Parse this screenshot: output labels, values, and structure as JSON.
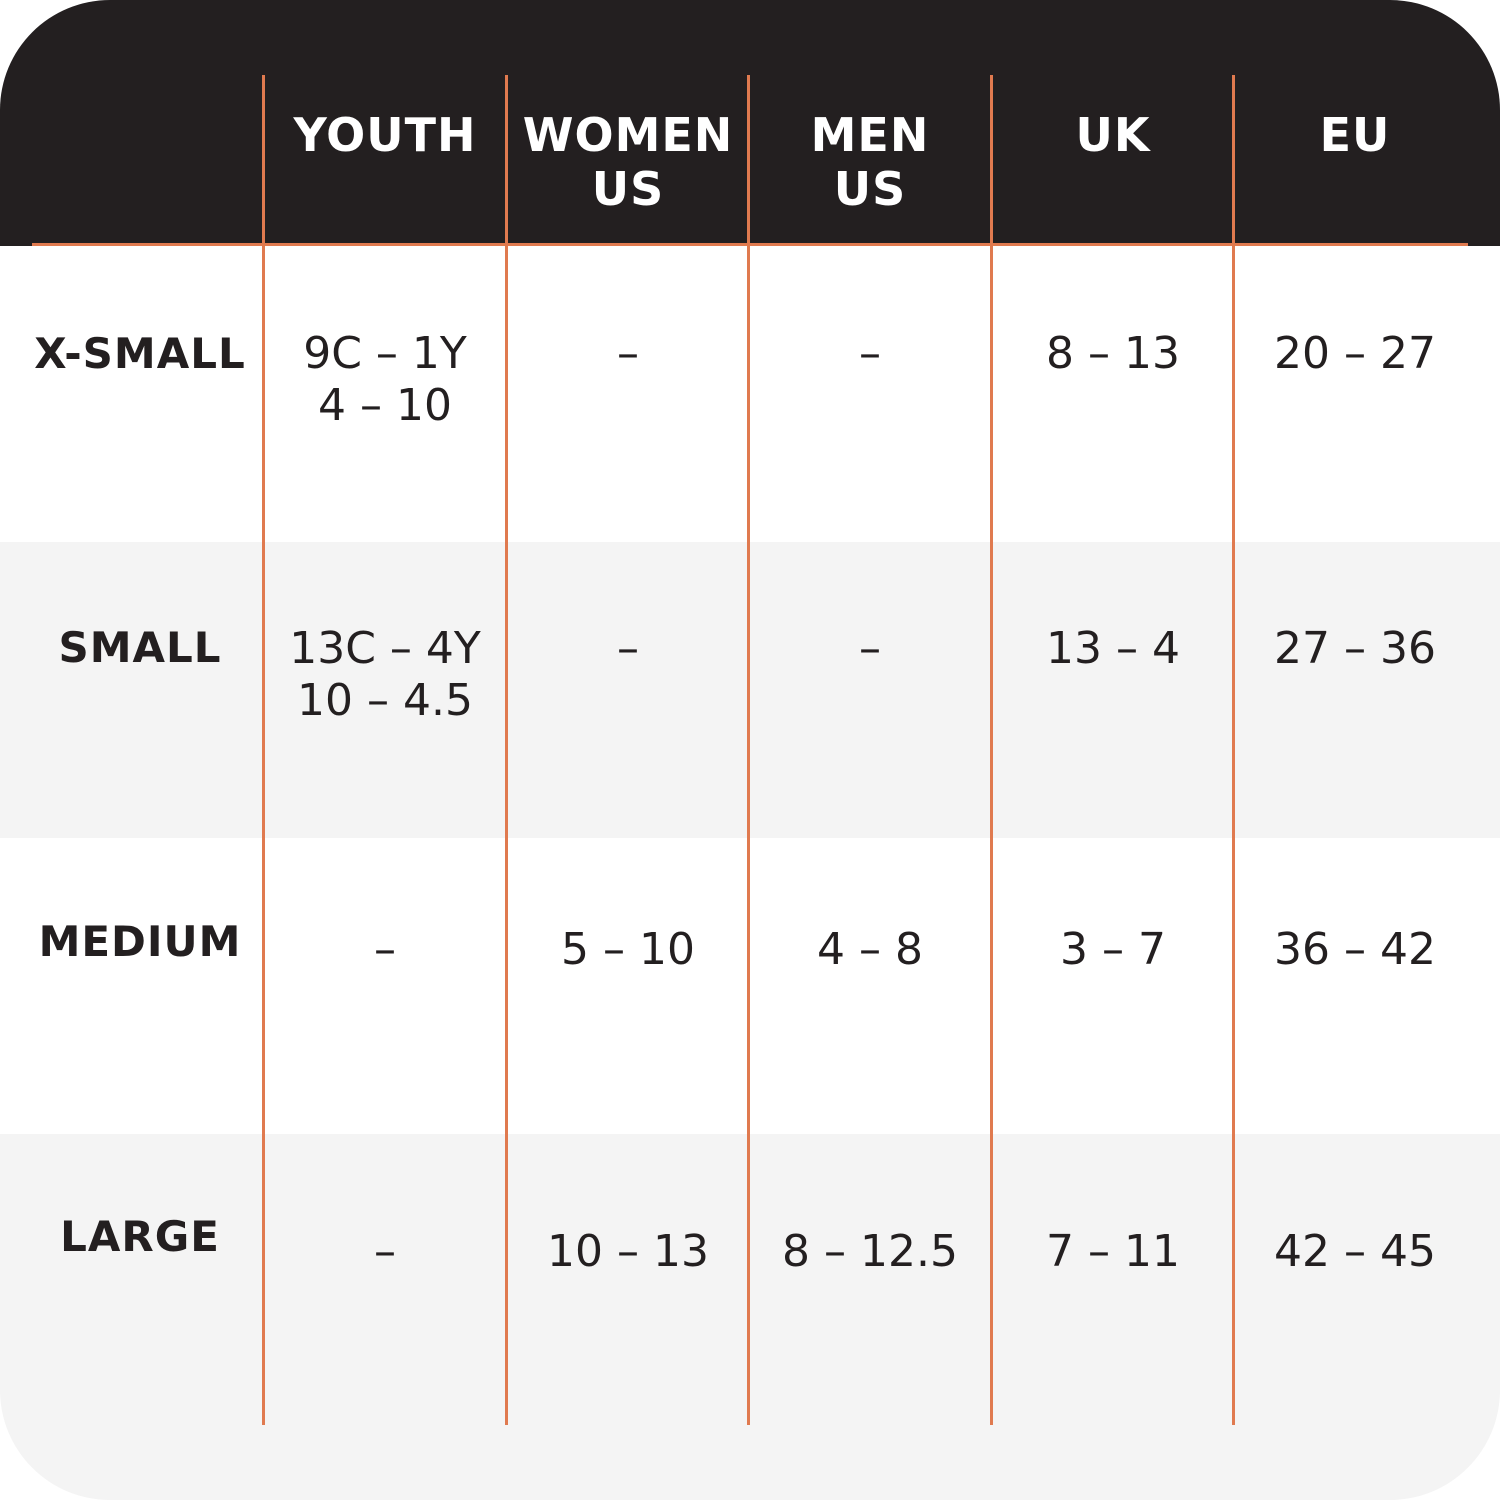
{
  "columns": [
    {
      "line1": "YOUTH",
      "line2": ""
    },
    {
      "line1": "WOMEN",
      "line2": "US"
    },
    {
      "line1": "MEN",
      "line2": "US"
    },
    {
      "line1": "UK",
      "line2": ""
    },
    {
      "line1": "EU",
      "line2": ""
    }
  ],
  "rows": [
    {
      "label": "X-SMALL",
      "cells": [
        {
          "line1": "9C – 1Y",
          "line2": "4 – 10"
        },
        {
          "line1": "–",
          "line2": ""
        },
        {
          "line1": "–",
          "line2": ""
        },
        {
          "line1": "8 – 13",
          "line2": ""
        },
        {
          "line1": "20 – 27",
          "line2": ""
        }
      ]
    },
    {
      "label": "SMALL",
      "cells": [
        {
          "line1": "13C – 4Y",
          "line2": "10 – 4.5"
        },
        {
          "line1": "–",
          "line2": ""
        },
        {
          "line1": "–",
          "line2": ""
        },
        {
          "line1": "13 – 4",
          "line2": ""
        },
        {
          "line1": "27 – 36",
          "line2": ""
        }
      ]
    },
    {
      "label": "MEDIUM",
      "cells": [
        {
          "line1": "–",
          "line2": ""
        },
        {
          "line1": "5 – 10",
          "line2": ""
        },
        {
          "line1": "4 – 8",
          "line2": ""
        },
        {
          "line1": "3 – 7",
          "line2": ""
        },
        {
          "line1": "36 – 42",
          "line2": ""
        }
      ]
    },
    {
      "label": "LARGE",
      "cells": [
        {
          "line1": "–",
          "line2": ""
        },
        {
          "line1": "10 – 13",
          "line2": ""
        },
        {
          "line1": "8 – 12.5",
          "line2": ""
        },
        {
          "line1": "7 – 11",
          "line2": ""
        },
        {
          "line1": "42 – 45",
          "line2": ""
        }
      ]
    }
  ],
  "colors": {
    "header_background": "#231f20",
    "header_text": "#ffffff",
    "divider": "#e07a4f",
    "row_alt_background": "#f4f4f4",
    "body_text": "#231f20"
  }
}
